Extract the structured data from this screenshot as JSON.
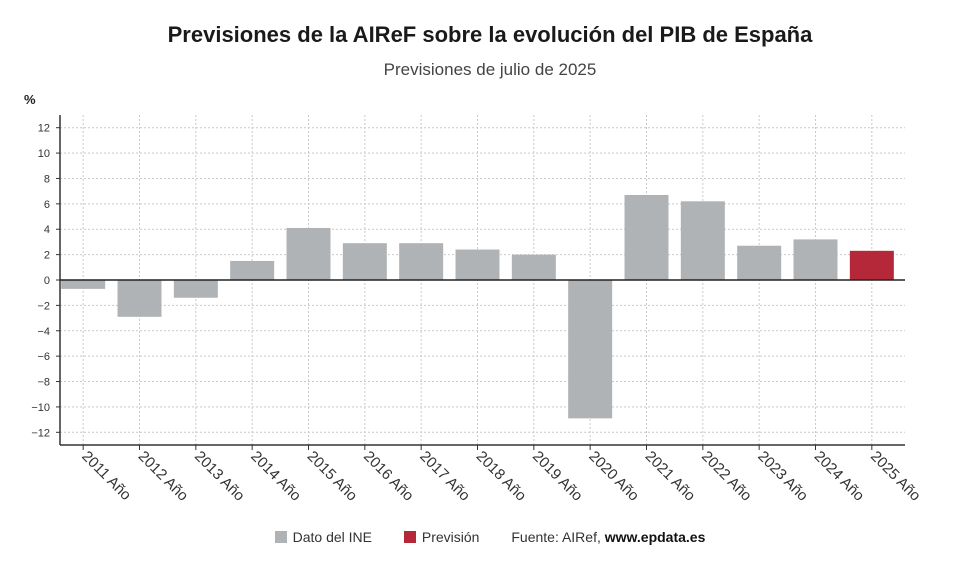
{
  "header": {
    "title": "Previsiones de la AIReF sobre la evolución del PIB de España",
    "subtitle": "Previsiones de julio de 2025",
    "unit": "%"
  },
  "legend": {
    "items": [
      {
        "label": "Dato del INE",
        "color": "#b0b3b5"
      },
      {
        "label": "Previsión",
        "color": "#b5283a"
      }
    ],
    "source_prefix": "Fuente: AIRef,",
    "source_site": "www.epdata.es"
  },
  "chart_data": {
    "type": "bar",
    "categories": [
      "2011 Año",
      "2012 Año",
      "2013 Año",
      "2014 Año",
      "2015 Año",
      "2016 Año",
      "2017 Año",
      "2018 Año",
      "2019 Año",
      "2020 Año",
      "2021 Año",
      "2022 Año",
      "2023 Año",
      "2024 Año",
      "2025 Año"
    ],
    "values": [
      -0.7,
      -2.9,
      -1.4,
      1.5,
      4.1,
      2.9,
      2.9,
      2.4,
      2.0,
      -10.9,
      6.7,
      6.2,
      2.7,
      3.2,
      2.3
    ],
    "bar_colors": [
      "#b0b3b5",
      "#b0b3b5",
      "#b0b3b5",
      "#b0b3b5",
      "#b0b3b5",
      "#b0b3b5",
      "#b0b3b5",
      "#b0b3b5",
      "#b0b3b5",
      "#b0b3b5",
      "#b0b3b5",
      "#b0b3b5",
      "#b0b3b5",
      "#b0b3b5",
      "#b5283a"
    ],
    "yticks": [
      12,
      10,
      8,
      6,
      4,
      2,
      0,
      -2,
      -4,
      -6,
      -8,
      -10,
      -12
    ],
    "ytick_labels": [
      "12",
      "10",
      "8",
      "6",
      "4",
      "2",
      "0",
      "−2",
      "−4",
      "−6",
      "−8",
      "−10",
      "−12"
    ],
    "ylim": [
      -13,
      13
    ],
    "grid": true,
    "legend_position": "bottom"
  }
}
